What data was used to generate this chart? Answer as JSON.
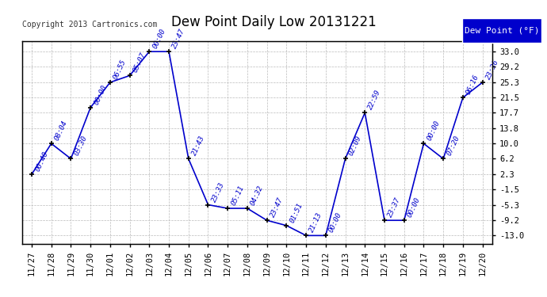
{
  "title": "Dew Point Daily Low 20131221",
  "copyright": "Copyright 2013 Cartronics.com",
  "legend_label": "Dew Point (°F)",
  "x_labels": [
    "11/27",
    "11/28",
    "11/29",
    "11/30",
    "12/01",
    "12/02",
    "12/03",
    "12/04",
    "12/05",
    "12/06",
    "12/07",
    "12/08",
    "12/09",
    "12/10",
    "12/11",
    "12/12",
    "12/13",
    "12/14",
    "12/15",
    "12/16",
    "12/17",
    "12/18",
    "12/19",
    "12/20"
  ],
  "x_indices": [
    0,
    1,
    2,
    3,
    4,
    5,
    6,
    7,
    8,
    9,
    10,
    11,
    12,
    13,
    14,
    15,
    16,
    17,
    18,
    19,
    20,
    21,
    22,
    23
  ],
  "y_values": [
    2.3,
    10.0,
    6.2,
    19.0,
    25.3,
    27.0,
    33.0,
    33.0,
    6.2,
    -5.3,
    -6.2,
    -6.2,
    -9.2,
    -10.5,
    -13.0,
    -13.0,
    6.2,
    17.7,
    -9.2,
    -9.2,
    10.0,
    6.2,
    21.5,
    25.3
  ],
  "point_labels": [
    "00:40",
    "08:04",
    "03:30",
    "00:00",
    "06:55",
    "05:07",
    "00:00",
    "23:47",
    "21:43",
    "23:33",
    "05:11",
    "04:32",
    "23:47",
    "01:51",
    "21:13",
    "00:00",
    "02:09",
    "22:59",
    "23:37",
    "00:00",
    "00:00",
    "07:20",
    "06:16",
    "23:36"
  ],
  "line_color": "#0000CC",
  "marker_color": "#000000",
  "bg_color": "#ffffff",
  "plot_bg_color": "#ffffff",
  "grid_color": "#bbbbbb",
  "ylim": [
    -15.0,
    35.5
  ],
  "yticks": [
    33.0,
    29.2,
    25.3,
    21.5,
    17.7,
    13.8,
    10.0,
    6.2,
    2.3,
    -1.5,
    -5.3,
    -9.2,
    -13.0
  ],
  "title_fontsize": 12,
  "label_fontsize": 6.5,
  "tick_fontsize": 7.5,
  "copyright_fontsize": 7
}
